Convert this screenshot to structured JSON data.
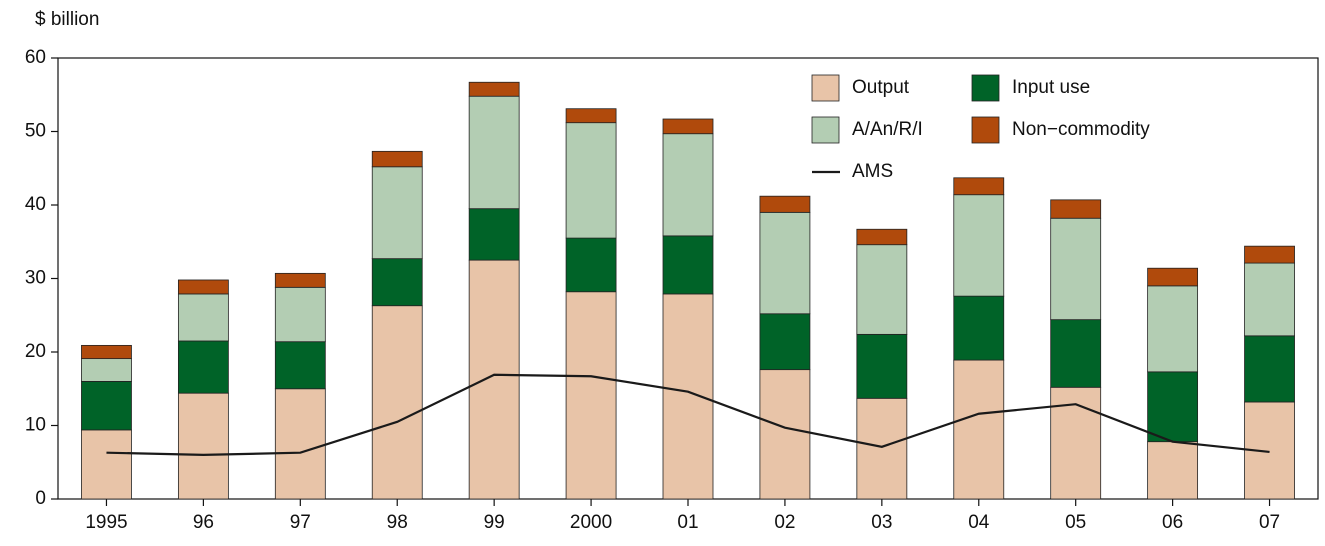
{
  "chart_data": {
    "type": "stacked_bar_line",
    "y_label": "$ billion",
    "categories": [
      "1995",
      "96",
      "97",
      "98",
      "99",
      "2000",
      "01",
      "02",
      "03",
      "04",
      "05",
      "06",
      "07"
    ],
    "series": [
      {
        "name": "Output",
        "color": "#e8c4a8",
        "values": [
          9.4,
          14.4,
          15.0,
          26.3,
          32.5,
          28.2,
          27.9,
          17.6,
          13.7,
          18.9,
          15.2,
          7.8,
          13.2
        ]
      },
      {
        "name": "Input use",
        "color": "#006328",
        "values": [
          6.6,
          7.1,
          6.4,
          6.4,
          7.0,
          7.3,
          7.9,
          7.6,
          8.7,
          8.7,
          9.2,
          9.5,
          9.0
        ]
      },
      {
        "name": "A/An/R/I",
        "color": "#b3cdb3",
        "values": [
          3.1,
          6.4,
          7.4,
          12.5,
          15.3,
          15.7,
          13.9,
          13.8,
          12.2,
          13.8,
          13.8,
          11.7,
          9.9
        ]
      },
      {
        "name": "Non−commodity",
        "color": "#b04a0c",
        "values": [
          1.8,
          1.9,
          1.9,
          2.1,
          1.9,
          1.9,
          2.0,
          2.2,
          2.1,
          2.3,
          2.5,
          2.4,
          2.3
        ]
      },
      {
        "name": "AMS",
        "color": "#1a1a1a",
        "kind": "line",
        "values": [
          6.3,
          6.0,
          6.3,
          10.5,
          16.9,
          16.7,
          14.6,
          9.7,
          7.1,
          11.6,
          12.9,
          7.8,
          6.4
        ]
      }
    ],
    "ylim": [
      0,
      60
    ],
    "yticks": [
      0,
      10,
      20,
      30,
      40,
      50,
      60
    ],
    "grid": false
  }
}
